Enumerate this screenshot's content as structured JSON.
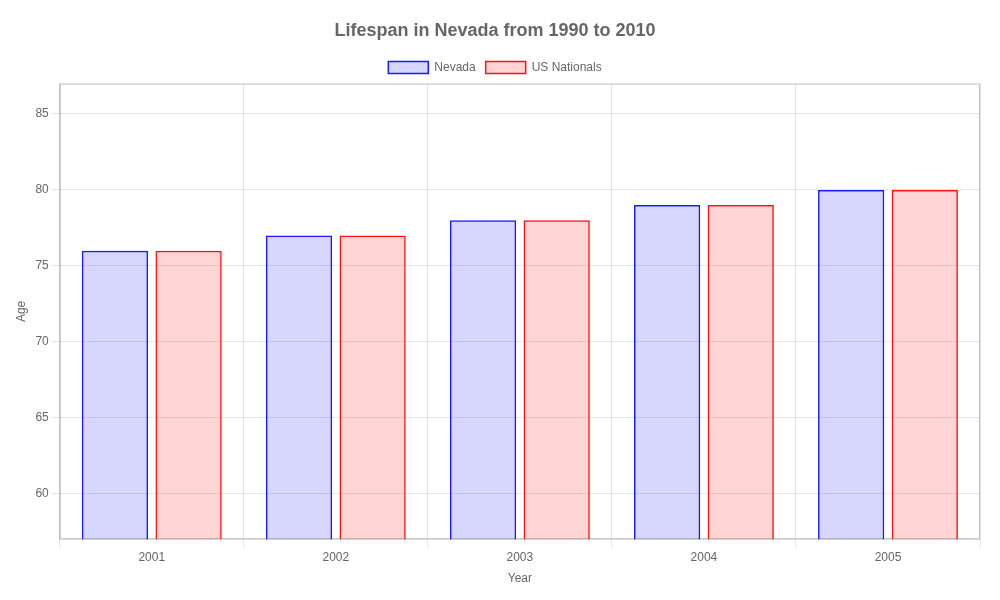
{
  "chart_data": {
    "type": "bar",
    "title": "Lifespan in Nevada from 1990 to 2010",
    "xlabel": "Year",
    "ylabel": "Age",
    "categories": [
      "2001",
      "2002",
      "2003",
      "2004",
      "2005"
    ],
    "series": [
      {
        "name": "Nevada",
        "color": "#1a1aff",
        "values": [
          76,
          77,
          78,
          79,
          80
        ]
      },
      {
        "name": "US Nationals",
        "color": "#ff1111",
        "values": [
          76,
          77,
          78,
          79,
          80
        ]
      }
    ],
    "ylim": [
      57,
      87
    ],
    "yticks": [
      60,
      65,
      70,
      75,
      80,
      85
    ],
    "grid": true,
    "legend": "top"
  }
}
